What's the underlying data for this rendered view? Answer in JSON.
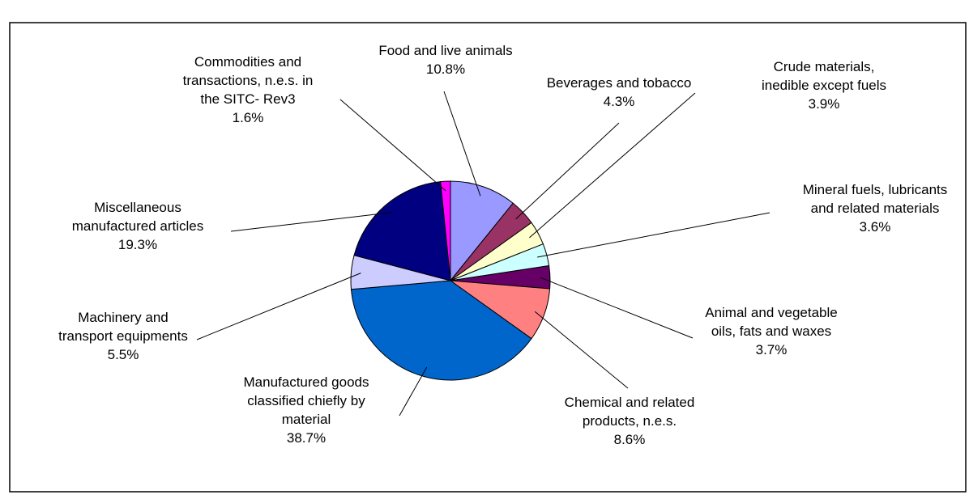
{
  "chart_data": {
    "type": "pie",
    "title": "",
    "legend": "none",
    "slices": [
      {
        "label": "Food and live animals",
        "value": 10.8,
        "value_label": "10.8%",
        "color": "#9999FF"
      },
      {
        "label": "Beverages and tobacco",
        "value": 4.3,
        "value_label": "4.3%",
        "color": "#993366"
      },
      {
        "label": "Crude materials, inedible except fuels",
        "value": 3.9,
        "value_label": "3.9%",
        "color": "#FFFFCC"
      },
      {
        "label": "Mineral fuels, lubricants and related materials",
        "value": 3.6,
        "value_label": "3.6%",
        "color": "#CCFFFF"
      },
      {
        "label": "Animal and vegetable oils, fats and waxes",
        "value": 3.7,
        "value_label": "3.7%",
        "color": "#660066"
      },
      {
        "label": "Chemical and related products, n.e.s.",
        "value": 8.6,
        "value_label": "8.6%",
        "color": "#FF8080"
      },
      {
        "label": "Manufactured goods classified chiefly by material",
        "value": 38.7,
        "value_label": "38.7%",
        "color": "#0066CC"
      },
      {
        "label": "Machinery and transport equipments",
        "value": 5.5,
        "value_label": "5.5%",
        "color": "#CCCCFF"
      },
      {
        "label": "Miscellaneous manufactured articles",
        "value": 19.3,
        "value_label": "19.3%",
        "color": "#000080"
      },
      {
        "label": "Commodities and transactions, n.e.s. in the SITC- Rev3",
        "value": 1.6,
        "value_label": "1.6%",
        "color": "#FF00FF"
      }
    ]
  }
}
